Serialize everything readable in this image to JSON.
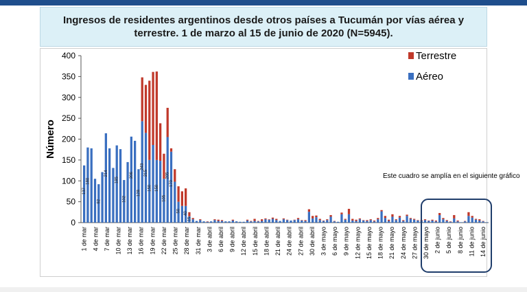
{
  "chart_data": {
    "type": "bar",
    "stacked": true,
    "title": "Ingresos de residentes argentinos desde otros países a Tucumán por vías aérea y\nterrestre. 1 de marzo al 15 de junio de 2020 (N=5945).",
    "ylabel": "Número",
    "xlabel": "",
    "ylim": [
      0,
      400
    ],
    "yticks": [
      0,
      50,
      100,
      150,
      200,
      250,
      300,
      350,
      400
    ],
    "grid": false,
    "legend_position": "top-right",
    "category_labels": [
      "1 de mar",
      "4 de mar",
      "7 de mar",
      "10 de mar",
      "13 de mar",
      "16 de mar",
      "19 de mar",
      "22 de mar",
      "25 de mar",
      "28 de mar",
      "31 de mar",
      "3 de abril",
      "6 de abril",
      "9 de abril",
      "12 de abril",
      "15 de abril",
      "18 de abril",
      "21 de abril",
      "24 de abril",
      "27 de abril",
      "30 de abril",
      "3 de mayo",
      "6 de mayo",
      "9 de mayo",
      "12 de mayo",
      "15 de mayo",
      "18 de mayo",
      "21 de mayo",
      "24 de mayo",
      "27 de mayo",
      "30 de mayo",
      "2 de junio",
      "5 de junio",
      "8 de junio",
      "11 de junio",
      "14 de junio"
    ],
    "annotation": "Este cuadro se amplía en el siguiente gráfico",
    "series": [
      {
        "name": "Aéreo",
        "color": "#3a6fc0",
        "values": [
          137,
          180,
          178,
          105,
          92,
          121,
          214,
          178,
          131,
          185,
          176,
          102,
          145,
          206,
          196,
          128,
          243,
          215,
          150,
          186,
          150,
          148,
          105,
          205,
          170,
          98,
          50,
          40,
          40,
          15,
          8,
          4,
          6,
          3,
          2,
          3,
          6,
          4,
          4,
          3,
          3,
          5,
          3,
          2,
          2,
          5,
          3,
          4,
          3,
          4,
          8,
          7,
          9,
          6,
          4,
          8,
          6,
          5,
          6,
          8,
          5,
          4,
          26,
          10,
          13,
          6,
          4,
          6,
          14,
          3,
          2,
          20,
          7,
          20,
          5,
          4,
          8,
          5,
          4,
          6,
          3,
          8,
          27,
          11,
          4,
          14,
          6,
          12,
          4,
          16,
          9,
          7,
          5,
          4,
          6,
          4,
          5,
          3,
          18,
          8,
          4,
          2,
          10,
          3,
          1,
          3,
          16,
          12,
          7,
          5,
          3,
          1
        ]
      },
      {
        "name": "Terrestre",
        "color": "#c0392b",
        "values": [
          0,
          0,
          0,
          0,
          0,
          0,
          0,
          0,
          0,
          0,
          0,
          0,
          0,
          0,
          0,
          0,
          105,
          115,
          190,
          175,
          212,
          90,
          60,
          70,
          8,
          30,
          37,
          35,
          42,
          10,
          3,
          0,
          2,
          0,
          1,
          0,
          2,
          3,
          2,
          0,
          0,
          2,
          0,
          0,
          0,
          2,
          1,
          5,
          1,
          4,
          2,
          1,
          3,
          3,
          0,
          2,
          1,
          0,
          1,
          3,
          1,
          2,
          6,
          6,
          4,
          3,
          1,
          2,
          4,
          1,
          0,
          4,
          2,
          13,
          4,
          3,
          2,
          1,
          2,
          2,
          2,
          3,
          3,
          5,
          3,
          6,
          2,
          4,
          2,
          3,
          2,
          2,
          1,
          2,
          2,
          1,
          2,
          2,
          5,
          3,
          2,
          1,
          8,
          2,
          0,
          1,
          9,
          4,
          2,
          3,
          1,
          0
        ]
      }
    ],
    "data_labels": [
      {
        "index": 0,
        "text": "137"
      },
      {
        "index": 1,
        "text": "180"
      },
      {
        "index": 4,
        "text": "92"
      },
      {
        "index": 6,
        "text": "214"
      },
      {
        "index": 9,
        "text": "185"
      },
      {
        "index": 11,
        "text": "102"
      },
      {
        "index": 13,
        "text": "206"
      },
      {
        "index": 15,
        "text": "128"
      },
      {
        "index": 16,
        "text": "243"
      },
      {
        "index": 17,
        "text": "215"
      },
      {
        "index": 18,
        "text": "150"
      },
      {
        "index": 20,
        "text": "150"
      },
      {
        "index": 22,
        "text": "105"
      },
      {
        "index": 23,
        "text": "205"
      },
      {
        "index": 24,
        "text": "170"
      },
      {
        "index": 26,
        "text": "50"
      },
      {
        "index": 28,
        "text": "40"
      },
      {
        "index": 29,
        "text": "15"
      }
    ]
  }
}
